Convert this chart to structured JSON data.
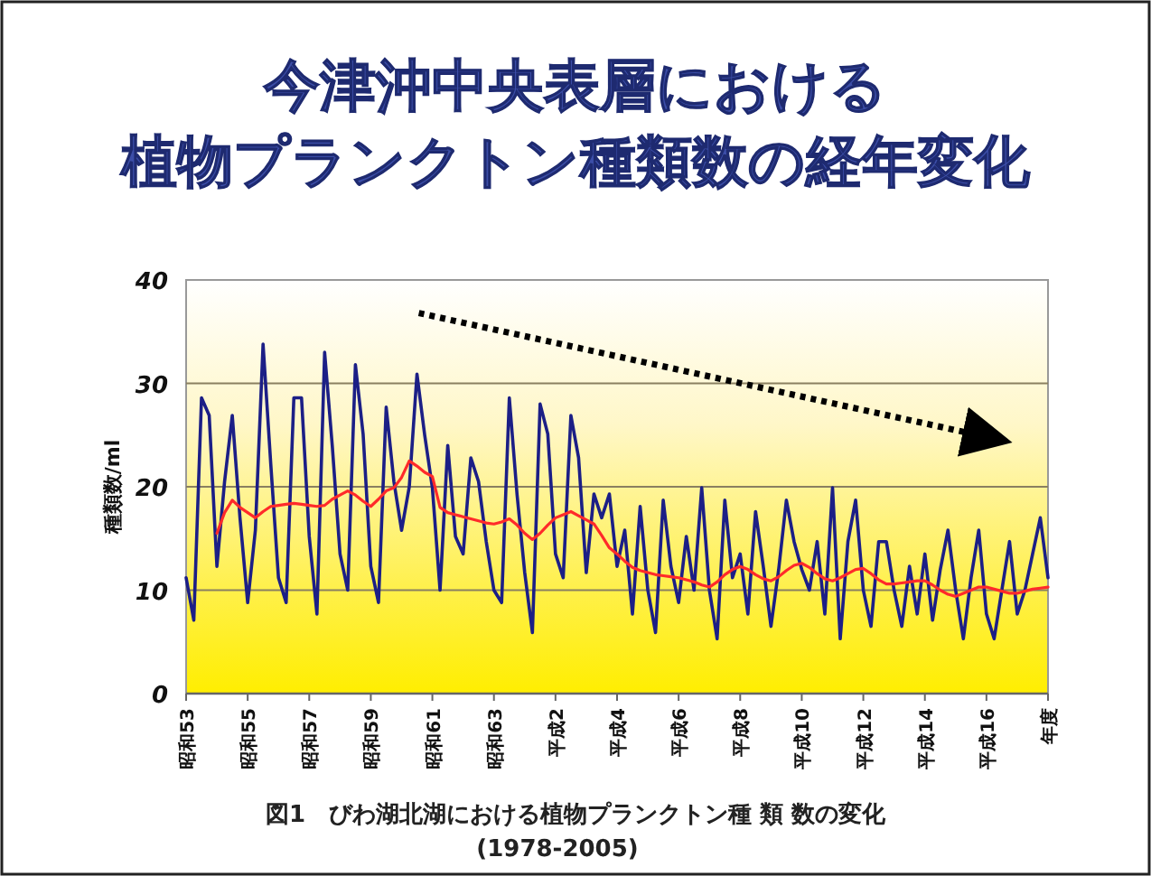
{
  "chart_data": {
    "type": "line",
    "title": "今津沖中央表層における植物プランクトン種類数の経年変化",
    "ylabel": "種類数/ml",
    "annotations": [
      "図1　びわ湖北湖における植物プランクトン種 類 数の変化",
      "(1978-2005)"
    ],
    "ylim": [
      0,
      40
    ],
    "yticks": [
      0,
      10,
      20,
      30,
      40
    ],
    "grid": "y",
    "categories": [
      "昭和53",
      null,
      null,
      null,
      null,
      null,
      null,
      null,
      "昭和55",
      null,
      null,
      null,
      null,
      null,
      null,
      null,
      "昭和57",
      null,
      null,
      null,
      null,
      null,
      null,
      null,
      "昭和59",
      null,
      null,
      null,
      null,
      null,
      null,
      null,
      "昭和61",
      null,
      null,
      null,
      null,
      null,
      null,
      null,
      "昭和63",
      null,
      null,
      null,
      null,
      null,
      null,
      null,
      "平成2",
      null,
      null,
      null,
      null,
      null,
      null,
      null,
      "平成4",
      null,
      null,
      null,
      null,
      null,
      null,
      null,
      "平成6",
      null,
      null,
      null,
      null,
      null,
      null,
      null,
      "平成8",
      null,
      null,
      null,
      null,
      null,
      null,
      null,
      "平成10",
      null,
      null,
      null,
      null,
      null,
      null,
      null,
      "平成12",
      null,
      null,
      null,
      null,
      null,
      null,
      null,
      "平成14",
      null,
      null,
      null,
      null,
      null,
      null,
      null,
      "平成16",
      null,
      null,
      null,
      null,
      null,
      null,
      null,
      "年度"
    ],
    "series": [
      {
        "color": "#1c1f86",
        "values": [
          11.2,
          7.1,
          28.6,
          26.9,
          12.3,
          20.5,
          26.9,
          17,
          8.8,
          15.8,
          33.8,
          22.2,
          11.2,
          8.8,
          28.6,
          28.6,
          15.2,
          7.7,
          33,
          23.9,
          13.5,
          10,
          31.8,
          25.1,
          12.3,
          8.8,
          27.7,
          20.5,
          15.8,
          20,
          30.9,
          25,
          19.9,
          10,
          24,
          15.2,
          13.5,
          22.8,
          20.5,
          14.7,
          10,
          8.8,
          28.6,
          19.3,
          11.7,
          5.9,
          28,
          25.1,
          13.5,
          11.2,
          26.9,
          22.8,
          11.7,
          19.3,
          17,
          19.3,
          12.3,
          15.8,
          7.7,
          18.1,
          10,
          5.9,
          18.7,
          12.3,
          8.8,
          15.2,
          10,
          19.9,
          10,
          5.3,
          18.7,
          11.2,
          13.5,
          7.7,
          17.6,
          12.3,
          6.5,
          12,
          18.7,
          14.7,
          12,
          10,
          14.7,
          7.7,
          19.9,
          5.3,
          14.7,
          18.7,
          10,
          6.5,
          14.7,
          14.7,
          10,
          6.5,
          12.3,
          7.7,
          13.5,
          7.1,
          12,
          15.8,
          10,
          5.3,
          11.2,
          15.8,
          7.7,
          5.3,
          10,
          14.7,
          7.7,
          10,
          13.5,
          17,
          11.2
        ]
      },
      {
        "color": "#ff2a2a",
        "values": [
          null,
          null,
          null,
          null,
          15.5,
          17.5,
          18.7,
          18,
          17.5,
          17,
          17.6,
          18.1,
          18.2,
          18.3,
          18.4,
          18.3,
          18.2,
          18.1,
          18.2,
          18.8,
          19.2,
          19.6,
          19.2,
          18.6,
          18.1,
          18.8,
          19.6,
          19.9,
          20.9,
          22.5,
          22,
          21.4,
          21,
          18,
          17.5,
          17.3,
          17.1,
          16.9,
          16.7,
          16.5,
          16.4,
          16.6,
          16.9,
          16.3,
          15.5,
          14.9,
          15.5,
          16.3,
          17,
          17.3,
          17.6,
          17.2,
          16.8,
          16.4,
          15.3,
          14.1,
          13.5,
          12.8,
          12.2,
          11.9,
          11.7,
          11.5,
          11.4,
          11.3,
          11.2,
          11,
          10.8,
          10.5,
          10.3,
          10.8,
          11.5,
          12,
          12.3,
          12,
          11.5,
          11.1,
          10.9,
          11.3,
          11.9,
          12.4,
          12.6,
          12.2,
          11.6,
          11.1,
          10.9,
          11.2,
          11.6,
          12,
          12.1,
          11.6,
          11,
          10.6,
          10.6,
          10.7,
          10.8,
          10.9,
          10.9,
          10.5,
          10,
          9.6,
          9.4,
          9.7,
          10,
          10.3,
          10.3,
          10.1,
          9.9,
          9.7,
          9.7,
          9.9,
          10.1,
          10.2,
          10.3
        ]
      }
    ]
  }
}
